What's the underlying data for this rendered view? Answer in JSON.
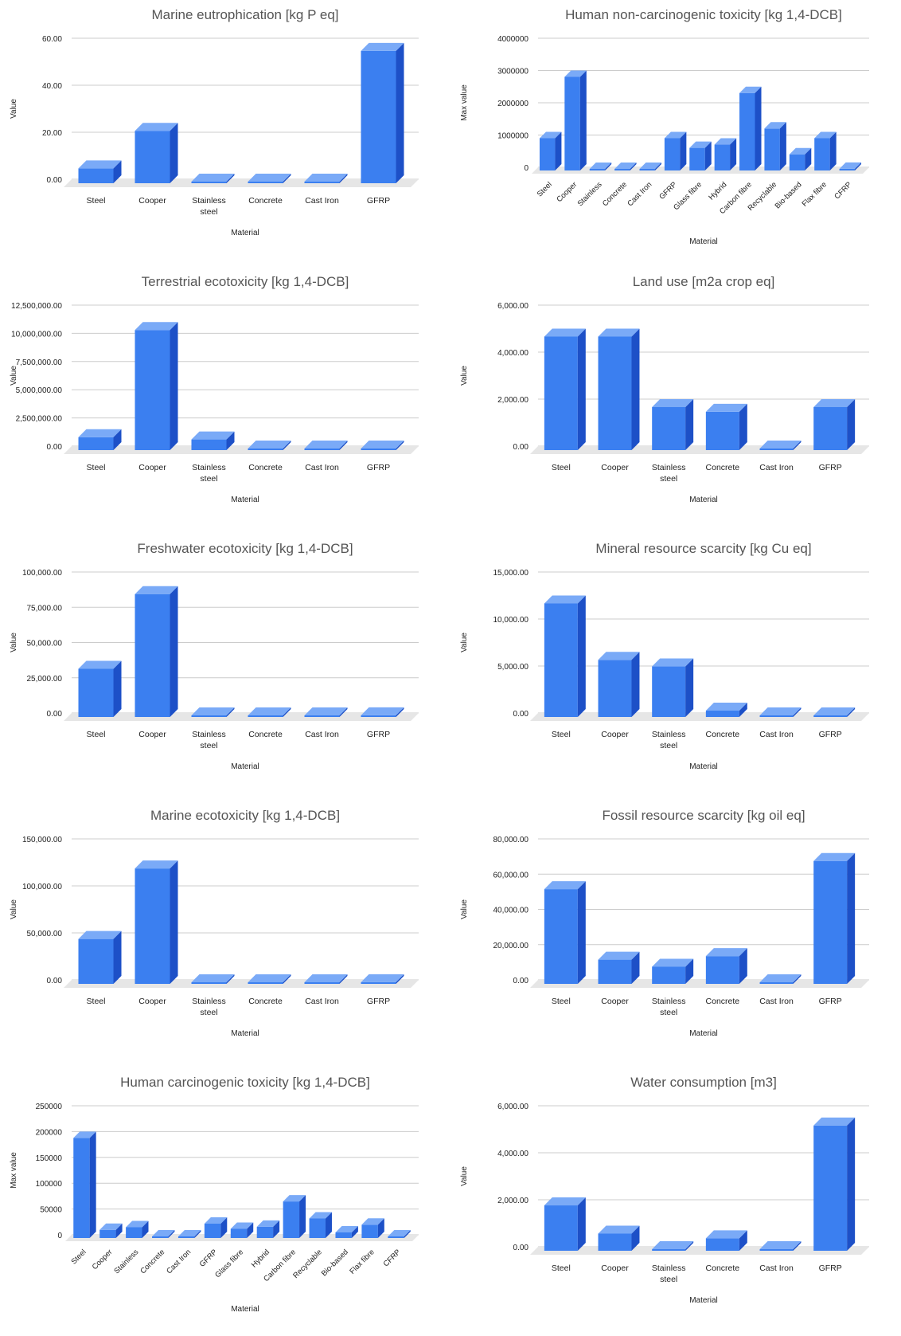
{
  "colors": {
    "bar_front": "#3b7ff0",
    "bar_side": "#1d50c7",
    "bar_top": "#7aaaf7",
    "grid": "#cccccc",
    "axis_text": "#222222",
    "title_text": "#555555",
    "floor": "#e6e6e6"
  },
  "chart_data": [
    {
      "type": "bar",
      "title": "Marine eutrophication [kg P eq]",
      "xlabel": "Material",
      "ylabel": "Value",
      "categories": [
        "Steel",
        "Cooper",
        "Stainless steel",
        "Concrete",
        "Cast Iron",
        "GFRP"
      ],
      "values": [
        8,
        24,
        0.2,
        0.2,
        0.2,
        58
      ],
      "ylim": [
        0,
        60
      ],
      "yticks": [
        "0.00",
        "20.00",
        "40.00",
        "60.00"
      ],
      "grid": true
    },
    {
      "type": "bar",
      "title": "Human non-carcinogenic toxicity [kg 1,4-DCB]",
      "xlabel": "Material",
      "ylabel": "Max value",
      "categories": [
        "Steel",
        "Cooper",
        "Stainless",
        "Concrete",
        "Cast Iron",
        "GFRP",
        "Glass fibre",
        "Hybrid",
        "Carbon fibre",
        "Recyclable",
        "Bio-based",
        "Flax fibre",
        "CFRP"
      ],
      "values": [
        1100000,
        3000000,
        20000,
        10000,
        10000,
        1100000,
        800000,
        900000,
        2500000,
        1400000,
        600000,
        1100000,
        150000
      ],
      "ylim": [
        0,
        4000000
      ],
      "yticks": [
        "0",
        "1000000",
        "2000000",
        "3000000",
        "4000000"
      ],
      "grid": true
    },
    {
      "type": "bar",
      "title": "Terrestrial ecotoxicity [kg 1,4-DCB]",
      "xlabel": "Material",
      "ylabel": "Value",
      "categories": [
        "Steel",
        "Cooper",
        "Stainless steel",
        "Concrete",
        "Cast Iron",
        "GFRP"
      ],
      "values": [
        1500000,
        11000000,
        1300000,
        100000,
        100000,
        150000
      ],
      "ylim": [
        0,
        12500000
      ],
      "yticks": [
        "0.00",
        "2,500,000.00",
        "5,000,000.00",
        "7,500,000.00",
        "10,000,000.00",
        "12,500,000.00"
      ],
      "grid": true
    },
    {
      "type": "bar",
      "title": "Land use [m2a crop eq]",
      "xlabel": "Material",
      "ylabel": "Value",
      "categories": [
        "Steel",
        "Cooper",
        "Stainless steel",
        "Concrete",
        "Cast Iron",
        "GFRP"
      ],
      "values": [
        5000,
        5000,
        2000,
        1800,
        100,
        2000
      ],
      "ylim": [
        0,
        6000
      ],
      "yticks": [
        "0.00",
        "2,000.00",
        "4,000.00",
        "6,000.00"
      ],
      "grid": true
    },
    {
      "type": "bar",
      "title": "Freshwater ecotoxicity [kg 1,4-DCB]",
      "xlabel": "Material",
      "ylabel": "Value",
      "categories": [
        "Steel",
        "Cooper",
        "Stainless steel",
        "Concrete",
        "Cast Iron",
        "GFRP"
      ],
      "values": [
        37000,
        90000,
        3500,
        500,
        500,
        4000
      ],
      "ylim": [
        0,
        100000
      ],
      "yticks": [
        "0.00",
        "25,000.00",
        "50,000.00",
        "75,000.00",
        "100,000.00"
      ],
      "grid": true
    },
    {
      "type": "bar",
      "title": "Mineral resource scarcity [kg Cu eq]",
      "xlabel": "Material",
      "ylabel": "Value",
      "categories": [
        "Steel",
        "Cooper",
        "Stainless steel",
        "Concrete",
        "Cast Iron",
        "GFRP"
      ],
      "values": [
        12500,
        6500,
        5800,
        1100,
        80,
        60
      ],
      "ylim": [
        0,
        15000
      ],
      "yticks": [
        "0.00",
        "5,000.00",
        "10,000.00",
        "15,000.00"
      ],
      "grid": true
    },
    {
      "type": "bar",
      "title": "Marine ecotoxicity [kg 1,4-DCB]",
      "xlabel": "Material",
      "ylabel": "Value",
      "categories": [
        "Steel",
        "Cooper",
        "Stainless steel",
        "Concrete",
        "Cast Iron",
        "GFRP"
      ],
      "values": [
        52000,
        127000,
        4000,
        800,
        800,
        6000
      ],
      "ylim": [
        0,
        150000
      ],
      "yticks": [
        "0.00",
        "50,000.00",
        "100,000.00",
        "150,000.00"
      ],
      "grid": true
    },
    {
      "type": "bar",
      "title": "Fossil resource scarcity [kg oil eq]",
      "xlabel": "Material",
      "ylabel": "Value",
      "categories": [
        "Steel",
        "Cooper",
        "Stainless steel",
        "Concrete",
        "Cast Iron",
        "GFRP"
      ],
      "values": [
        56000,
        16000,
        12000,
        18000,
        2000,
        72000
      ],
      "ylim": [
        0,
        80000
      ],
      "yticks": [
        "0.00",
        "20,000.00",
        "40,000.00",
        "60,000.00",
        "80,000.00"
      ],
      "grid": true
    },
    {
      "type": "bar",
      "title": "Human carcinogenic toxicity [kg 1,4-DCB]",
      "xlabel": "Material",
      "ylabel": "Max value",
      "categories": [
        "Steel",
        "Cooper",
        "Stainless",
        "Concrete",
        "Cast Iron",
        "GFRP",
        "Glass fibre",
        "Hybrid",
        "Carbon fibre",
        "Recyclable",
        "Bio-based",
        "Flax fibre",
        "CFRP"
      ],
      "values": [
        200000,
        22000,
        27000,
        1500,
        2000,
        34000,
        24000,
        28000,
        77000,
        44000,
        17000,
        32000,
        2000
      ],
      "ylim": [
        0,
        250000
      ],
      "yticks": [
        "0",
        "50000",
        "100000",
        "150000",
        "200000",
        "250000"
      ],
      "grid": true
    },
    {
      "type": "bar",
      "title": "Water consumption [m3]",
      "xlabel": "Material",
      "ylabel": "Value",
      "categories": [
        "Steel",
        "Cooper",
        "Stainless steel",
        "Concrete",
        "Cast Iron",
        "GFRP"
      ],
      "values": [
        2100,
        900,
        150,
        700,
        80,
        5500
      ],
      "ylim": [
        0,
        6000
      ],
      "yticks": [
        "0.00",
        "2,000.00",
        "4,000.00",
        "6,000.00"
      ],
      "grid": true
    }
  ]
}
